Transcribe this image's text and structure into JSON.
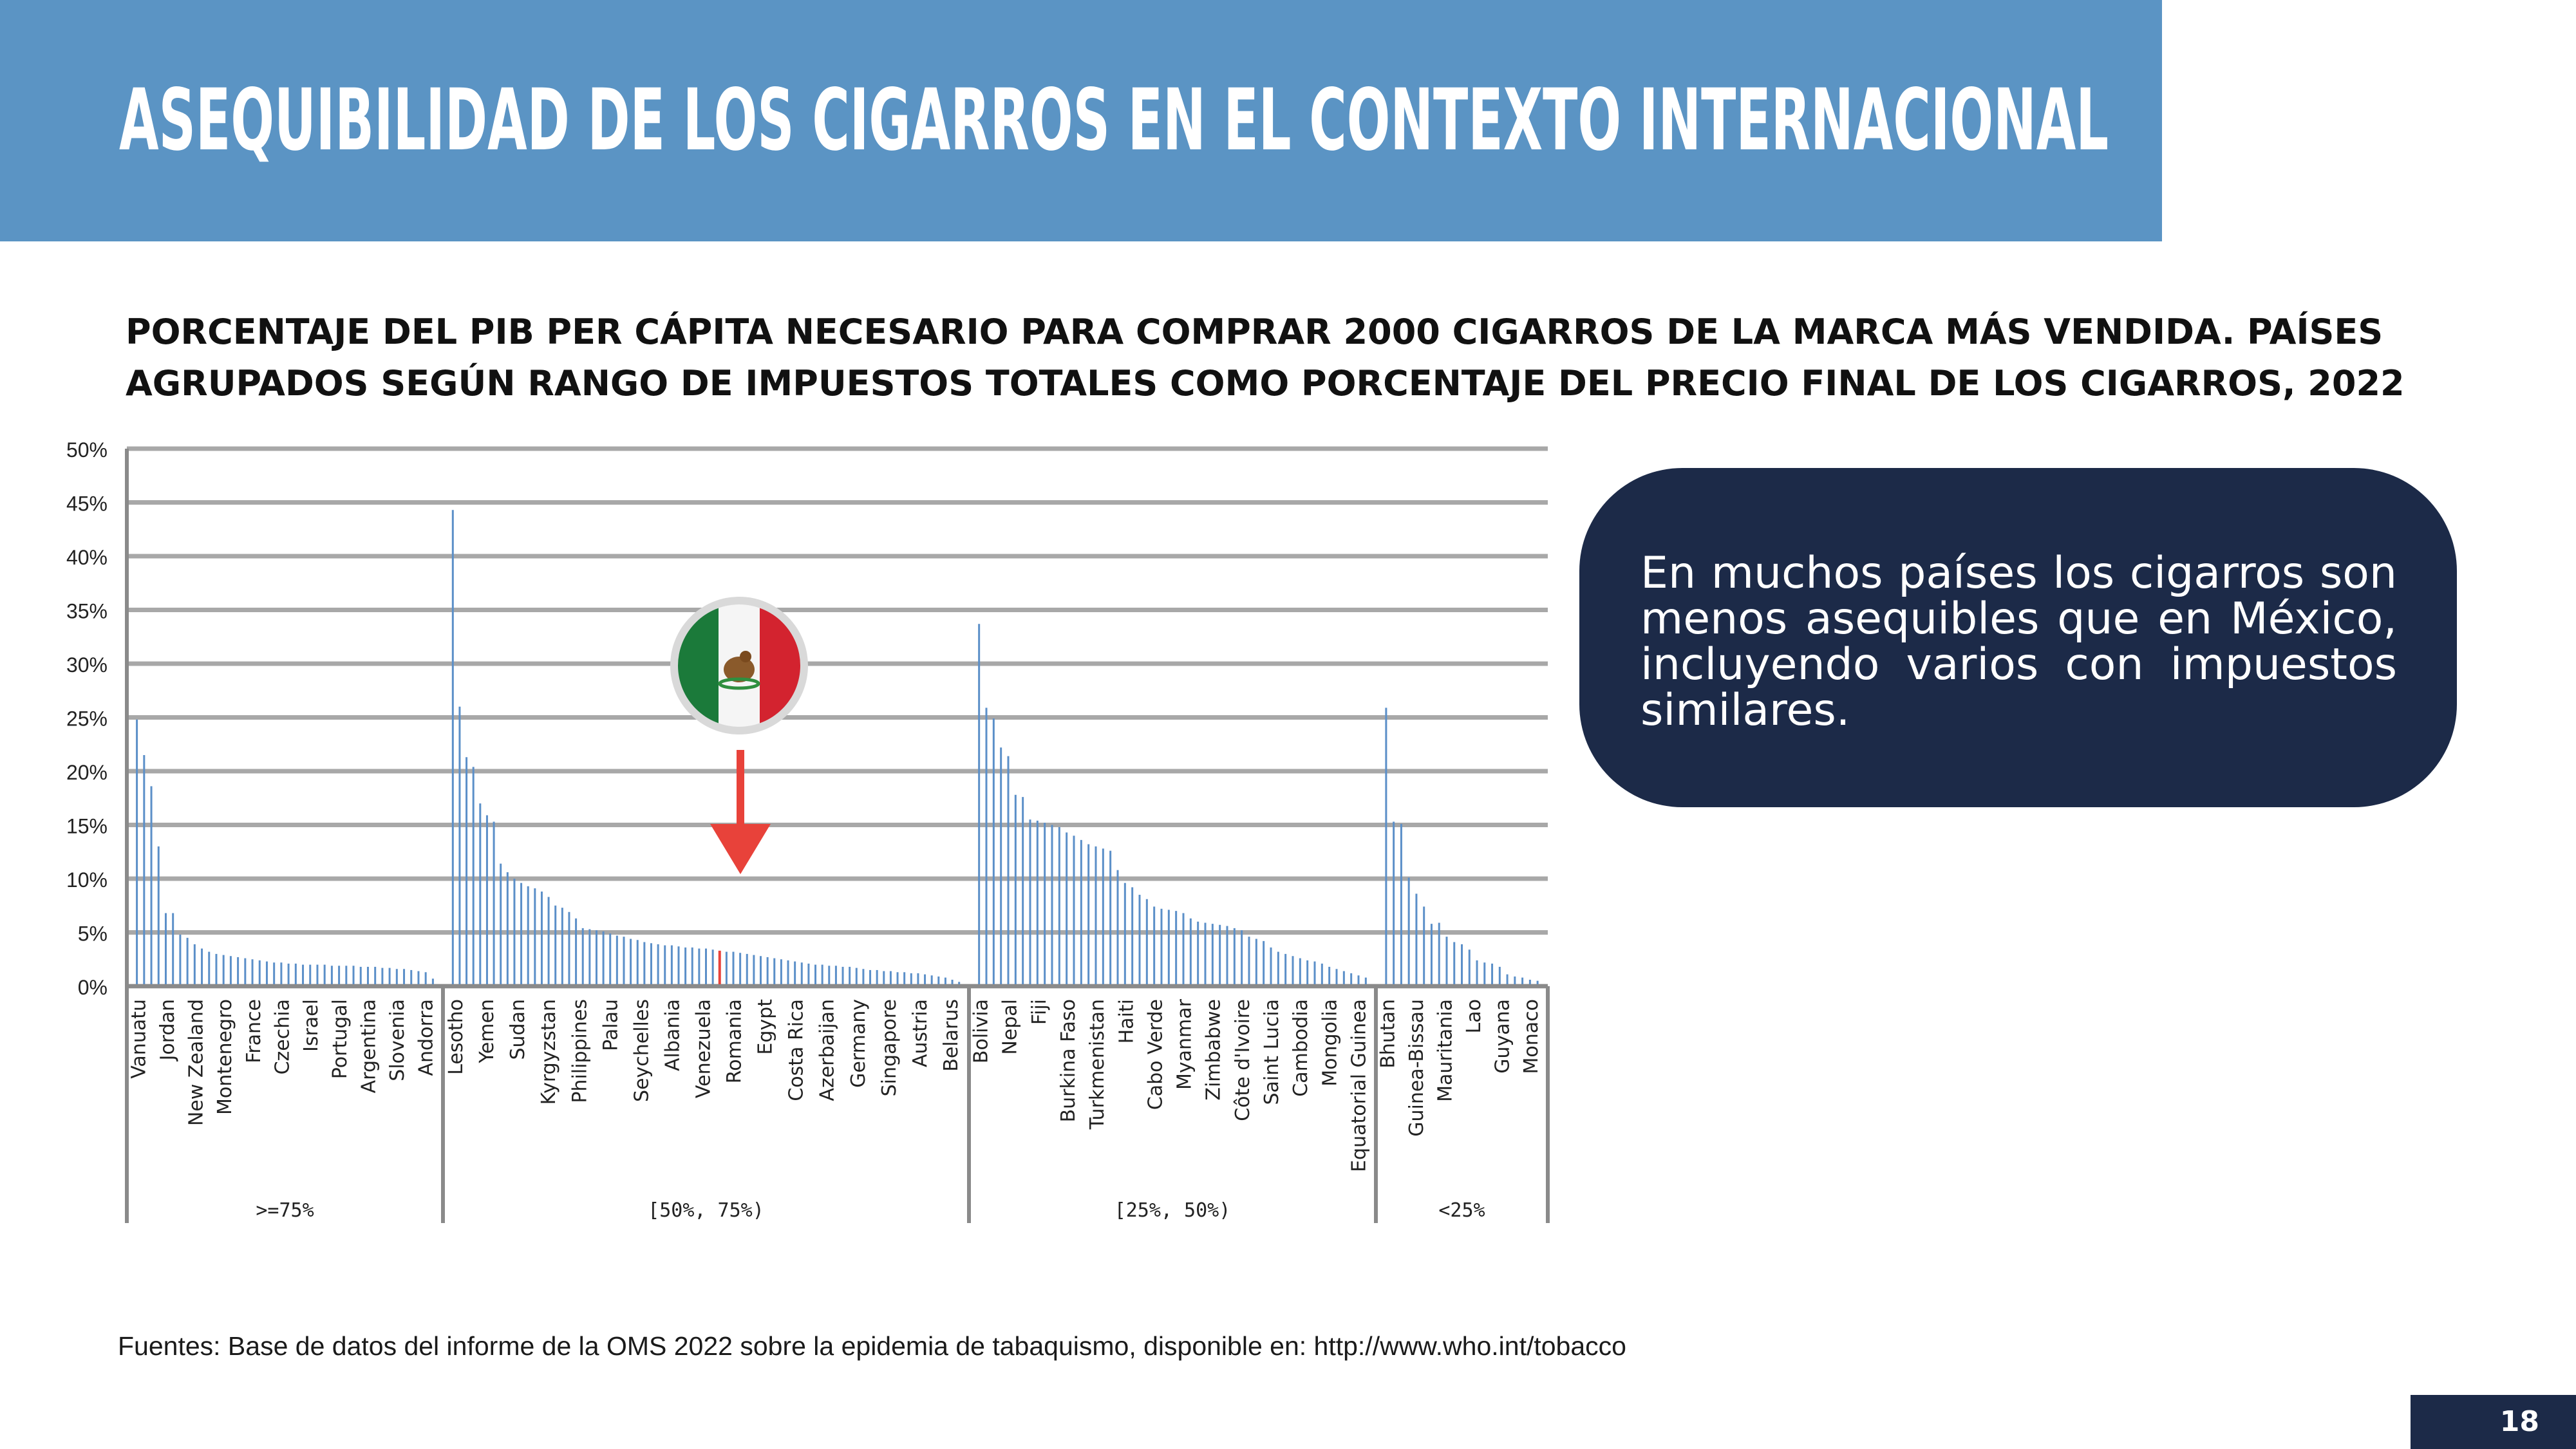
{
  "header": {
    "title": "ASEQUIBILIDAD DE LOS CIGARROS EN EL CONTEXTO INTERNACIONAL"
  },
  "chart_data": {
    "type": "bar",
    "title_lines": [
      "PORCENTAJE DEL PIB PER CÁPITA NECESARIO PARA COMPRAR 2000 CIGARROS DE LA MARCA MÁS VENDIDA. PAÍSES",
      "AGRUPADOS SEGÚN RANGO DE IMPUESTOS TOTALES COMO PORCENTAJE DEL PRECIO FINAL DE LOS CIGARROS, 2022"
    ],
    "ylim": [
      0,
      50
    ],
    "yticks": [
      "0%",
      "5%",
      "10%",
      "15%",
      "20%",
      "25%",
      "30%",
      "35%",
      "40%",
      "45%",
      "50%"
    ],
    "bar_color": "#5b8fc8",
    "highlight_color": "#e8423a",
    "highlight_country": "Mexico",
    "groups": [
      {
        "label": ">=75%",
        "values": [
          24.8,
          21.5,
          18.6,
          13.0,
          6.8,
          6.8,
          4.8,
          4.5,
          3.9,
          3.5,
          3.2,
          3.0,
          2.9,
          2.8,
          2.7,
          2.6,
          2.5,
          2.4,
          2.3,
          2.2,
          2.2,
          2.1,
          2.1,
          2.0,
          2.0,
          2.0,
          2.0,
          1.9,
          1.9,
          1.9,
          1.9,
          1.8,
          1.8,
          1.8,
          1.7,
          1.7,
          1.6,
          1.6,
          1.5,
          1.4,
          1.3,
          0.7
        ],
        "labels": [
          "Vanuatu",
          "Jordan",
          "New Zealand",
          "Montenegro",
          "France",
          "Czechia",
          "Israel",
          "Portugal",
          "Argentina",
          "Slovenia",
          "Andorra"
        ]
      },
      {
        "label": "[50%, 75%)",
        "values": [
          44.3,
          26.0,
          21.3,
          20.4,
          17.0,
          15.9,
          15.3,
          11.4,
          10.6,
          10.0,
          9.6,
          9.3,
          9.1,
          8.8,
          8.3,
          7.5,
          7.3,
          6.9,
          6.3,
          5.4,
          5.3,
          5.2,
          5.1,
          4.9,
          4.7,
          4.6,
          4.4,
          4.3,
          4.1,
          4.0,
          3.9,
          3.8,
          3.8,
          3.7,
          3.6,
          3.6,
          3.5,
          3.5,
          3.4,
          3.3,
          3.2,
          3.2,
          3.1,
          3.0,
          2.9,
          2.8,
          2.7,
          2.6,
          2.5,
          2.4,
          2.3,
          2.2,
          2.1,
          2.0,
          2.0,
          1.9,
          1.9,
          1.8,
          1.8,
          1.7,
          1.6,
          1.5,
          1.5,
          1.4,
          1.4,
          1.3,
          1.3,
          1.2,
          1.2,
          1.1,
          1.0,
          0.9,
          0.8,
          0.6,
          0.4
        ],
        "labels": [
          "Lesotho",
          "Yemen",
          "Sudan",
          "Kyrgyzstan",
          "Philippines",
          "Palau",
          "Seychelles",
          "Albania",
          "Venezuela",
          "Romania",
          "Egypt",
          "Costa Rica",
          "Azerbaijan",
          "Germany",
          "Singapore",
          "Austria",
          "Belarus"
        ],
        "highlight_index": 39
      },
      {
        "label": "[25%, 50%)",
        "values": [
          33.7,
          25.9,
          24.9,
          22.2,
          21.4,
          17.8,
          17.6,
          15.5,
          15.4,
          15.2,
          15.0,
          14.8,
          14.3,
          14.0,
          13.6,
          13.2,
          13.0,
          12.8,
          12.6,
          10.8,
          9.6,
          9.2,
          8.5,
          8.1,
          7.4,
          7.2,
          7.1,
          7.0,
          6.8,
          6.3,
          6.0,
          5.9,
          5.8,
          5.7,
          5.6,
          5.4,
          5.2,
          4.6,
          4.4,
          4.2,
          3.6,
          3.2,
          3.0,
          2.8,
          2.6,
          2.4,
          2.3,
          2.1,
          1.8,
          1.6,
          1.4,
          1.2,
          1.0,
          0.8
        ],
        "labels": [
          "Bolivia",
          "Nepal",
          "Fiji",
          "Burkina Faso",
          "Turkmenistan",
          "Haiti",
          "Cabo Verde",
          "Myanmar",
          "Zimbabwe",
          "Côte d'Ivoire",
          "Saint Lucia",
          "Cambodia",
          "Mongolia",
          "Equatorial Guinea"
        ]
      },
      {
        "label": "<25%",
        "values": [
          25.9,
          15.3,
          15.1,
          10.1,
          8.6,
          7.4,
          5.8,
          5.9,
          4.6,
          4.1,
          3.9,
          3.4,
          2.4,
          2.2,
          2.1,
          1.8,
          1.1,
          0.9,
          0.8,
          0.6,
          0.5
        ],
        "labels": [
          "Bhutan",
          "Guinea-Bissau",
          "Mauritania",
          "Lao",
          "Guyana",
          "Monaco"
        ]
      }
    ]
  },
  "callout": {
    "text": "En muchos países los cigarros son menos asequibles que en México, incluyendo varios con impuestos similares."
  },
  "source": "Fuentes: Base de datos del informe de la OMS 2022 sobre la epidemia de tabaquismo, disponible en: http://www.who.int/tobacco",
  "page_number": "18",
  "colors": {
    "header": "#5b94c4",
    "navy": "#1c2a48",
    "gridline": "#a8a8a8",
    "arrow": "#e8423a"
  }
}
